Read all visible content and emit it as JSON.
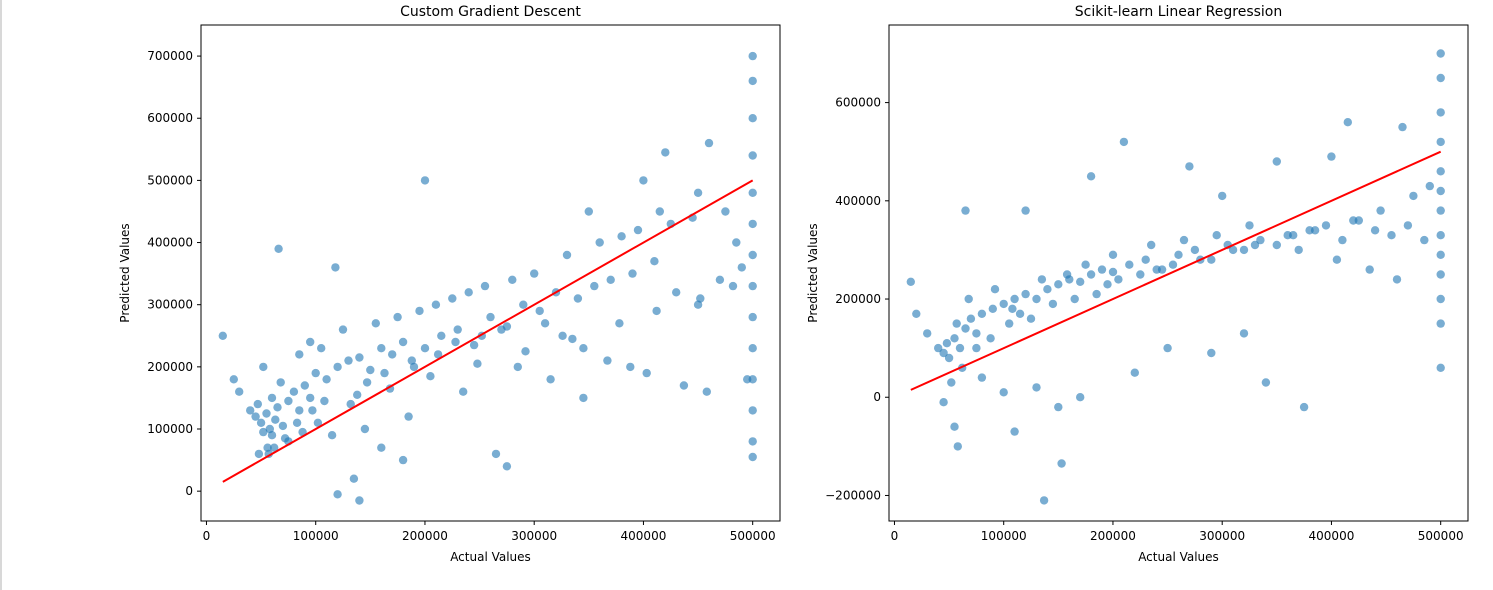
{
  "chart_data": [
    {
      "type": "scatter",
      "title": "Custom Gradient Descent",
      "xlabel": "Actual Values",
      "ylabel": "Predicted Values",
      "xlim": [
        -5000,
        525000
      ],
      "ylim": [
        -48000,
        750000
      ],
      "xticks": [
        0,
        100000,
        200000,
        300000,
        400000,
        500000
      ],
      "yticks": [
        0,
        100000,
        200000,
        300000,
        400000,
        500000,
        600000,
        700000
      ],
      "grid": false,
      "series": [
        {
          "kind": "scatter",
          "color": "#1f77b4",
          "alpha": 0.6,
          "points_x": [
            14999,
            25000,
            30000,
            40000,
            45000,
            47000,
            50000,
            52000,
            55000,
            58000,
            60000,
            63000,
            65000,
            68000,
            70000,
            75000,
            80000,
            85000,
            90000,
            95000,
            100000,
            110000,
            120000,
            130000,
            140000,
            150000,
            160000,
            170000,
            180000,
            190000,
            200000,
            215000,
            230000,
            245000,
            260000,
            275000,
            290000,
            305000,
            320000,
            340000,
            355000,
            370000,
            390000,
            410000,
            430000,
            450000,
            470000,
            490000,
            500001,
            500001,
            500001,
            500001,
            500001,
            500001,
            500001,
            500001,
            500001,
            500001,
            500001,
            500001,
            500001,
            500001,
            66000,
            200000,
            140000,
            120000,
            135000,
            118000,
            420000,
            400000,
            450000,
            460000,
            415000,
            350000,
            275000,
            265000,
            180000,
            160000,
            85000,
            95000,
            105000,
            125000,
            155000,
            175000,
            195000,
            210000,
            225000,
            240000,
            255000,
            280000,
            300000,
            330000,
            360000,
            380000,
            395000,
            425000,
            445000,
            475000,
            485000,
            345000,
            315000,
            285000,
            235000,
            185000,
            145000,
            115000,
            75000,
            62000,
            57000,
            72000,
            88000,
            102000,
            132000,
            168000,
            205000,
            248000,
            292000,
            335000,
            378000,
            412000,
            452000,
            482000,
            52000,
            48000,
            60000,
            56000,
            83000,
            97000,
            108000,
            138000,
            147000,
            163000,
            188000,
            212000,
            228000,
            252000,
            270000,
            310000,
            326000,
            345000,
            367000,
            388000,
            403000,
            437000,
            458000,
            495000
          ],
          "points_y": [
            250000,
            180000,
            160000,
            130000,
            120000,
            140000,
            110000,
            95000,
            125000,
            100000,
            150000,
            115000,
            135000,
            175000,
            105000,
            145000,
            160000,
            130000,
            170000,
            150000,
            190000,
            180000,
            200000,
            210000,
            215000,
            195000,
            230000,
            220000,
            240000,
            200000,
            230000,
            250000,
            260000,
            235000,
            280000,
            265000,
            300000,
            290000,
            320000,
            310000,
            330000,
            340000,
            350000,
            370000,
            320000,
            300000,
            340000,
            360000,
            700000,
            660000,
            600000,
            540000,
            480000,
            430000,
            380000,
            330000,
            280000,
            230000,
            180000,
            130000,
            80000,
            55000,
            390000,
            500000,
            -15000,
            -5000,
            20000,
            360000,
            545000,
            500000,
            480000,
            560000,
            450000,
            450000,
            40000,
            60000,
            50000,
            70000,
            220000,
            240000,
            230000,
            260000,
            270000,
            280000,
            290000,
            300000,
            310000,
            320000,
            330000,
            340000,
            350000,
            380000,
            400000,
            410000,
            420000,
            430000,
            440000,
            450000,
            400000,
            150000,
            180000,
            200000,
            160000,
            120000,
            100000,
            90000,
            80000,
            70000,
            60000,
            85000,
            95000,
            110000,
            140000,
            165000,
            185000,
            205000,
            225000,
            245000,
            270000,
            290000,
            310000,
            330000,
            200000,
            60000,
            90000,
            70000,
            110000,
            130000,
            145000,
            155000,
            175000,
            190000,
            210000,
            220000,
            240000,
            250000,
            260000,
            270000,
            250000,
            230000,
            210000,
            200000,
            190000,
            170000,
            160000,
            180000
          ]
        },
        {
          "kind": "line",
          "color": "#ff0000",
          "x": [
            14999,
            500001
          ],
          "y": [
            14999,
            500001
          ]
        }
      ]
    },
    {
      "type": "scatter",
      "title": "Scikit-learn Linear Regression",
      "xlabel": "Actual Values",
      "ylabel": "Predicted Values",
      "xlim": [
        -5000,
        525000
      ],
      "ylim": [
        -252000,
        758000
      ],
      "xticks": [
        0,
        100000,
        200000,
        300000,
        400000,
        500000
      ],
      "yticks": [
        -200000,
        0,
        200000,
        400000,
        600000
      ],
      "grid": false,
      "series": [
        {
          "kind": "scatter",
          "color": "#1f77b4",
          "alpha": 0.6,
          "points_x": [
            14999,
            20000,
            30000,
            40000,
            45000,
            50000,
            55000,
            60000,
            65000,
            70000,
            75000,
            80000,
            90000,
            100000,
            110000,
            120000,
            130000,
            140000,
            150000,
            160000,
            170000,
            180000,
            190000,
            200000,
            215000,
            230000,
            245000,
            260000,
            275000,
            290000,
            305000,
            320000,
            335000,
            350000,
            365000,
            380000,
            395000,
            410000,
            425000,
            440000,
            455000,
            470000,
            485000,
            500001,
            500001,
            500001,
            500001,
            500001,
            500001,
            500001,
            500001,
            500001,
            500001,
            500001,
            500001,
            500001,
            65000,
            120000,
            137000,
            153000,
            58000,
            55000,
            45000,
            180000,
            210000,
            270000,
            300000,
            350000,
            400000,
            415000,
            465000,
            375000,
            340000,
            290000,
            220000,
            170000,
            130000,
            100000,
            80000,
            62000,
            75000,
            88000,
            105000,
            115000,
            125000,
            145000,
            165000,
            185000,
            195000,
            205000,
            225000,
            240000,
            255000,
            280000,
            310000,
            330000,
            360000,
            385000,
            420000,
            445000,
            475000,
            490000,
            52000,
            48000,
            57000,
            68000,
            92000,
            108000,
            135000,
            158000,
            175000,
            200000,
            235000,
            265000,
            295000,
            325000,
            370000,
            405000,
            435000,
            460000,
            110000,
            150000,
            250000,
            320000
          ],
          "points_y": [
            235000,
            170000,
            130000,
            100000,
            90000,
            80000,
            120000,
            100000,
            140000,
            160000,
            130000,
            170000,
            180000,
            190000,
            200000,
            210000,
            200000,
            220000,
            230000,
            240000,
            235000,
            250000,
            260000,
            255000,
            270000,
            280000,
            260000,
            290000,
            300000,
            280000,
            310000,
            300000,
            320000,
            310000,
            330000,
            340000,
            350000,
            320000,
            360000,
            340000,
            330000,
            350000,
            320000,
            700000,
            650000,
            580000,
            520000,
            460000,
            420000,
            380000,
            330000,
            290000,
            250000,
            200000,
            150000,
            60000,
            380000,
            380000,
            -210000,
            -135000,
            -100000,
            -60000,
            -10000,
            450000,
            520000,
            470000,
            410000,
            480000,
            490000,
            560000,
            550000,
            -20000,
            30000,
            90000,
            50000,
            0,
            20000,
            10000,
            40000,
            60000,
            100000,
            120000,
            150000,
            170000,
            160000,
            190000,
            200000,
            210000,
            230000,
            240000,
            250000,
            260000,
            270000,
            280000,
            300000,
            310000,
            330000,
            340000,
            360000,
            380000,
            410000,
            430000,
            30000,
            110000,
            150000,
            200000,
            220000,
            180000,
            240000,
            250000,
            270000,
            290000,
            310000,
            320000,
            330000,
            350000,
            300000,
            280000,
            260000,
            240000,
            -70000,
            -20000,
            100000,
            130000
          ]
        },
        {
          "kind": "line",
          "color": "#ff0000",
          "x": [
            14999,
            500001
          ],
          "y": [
            14999,
            500001
          ]
        }
      ]
    }
  ]
}
